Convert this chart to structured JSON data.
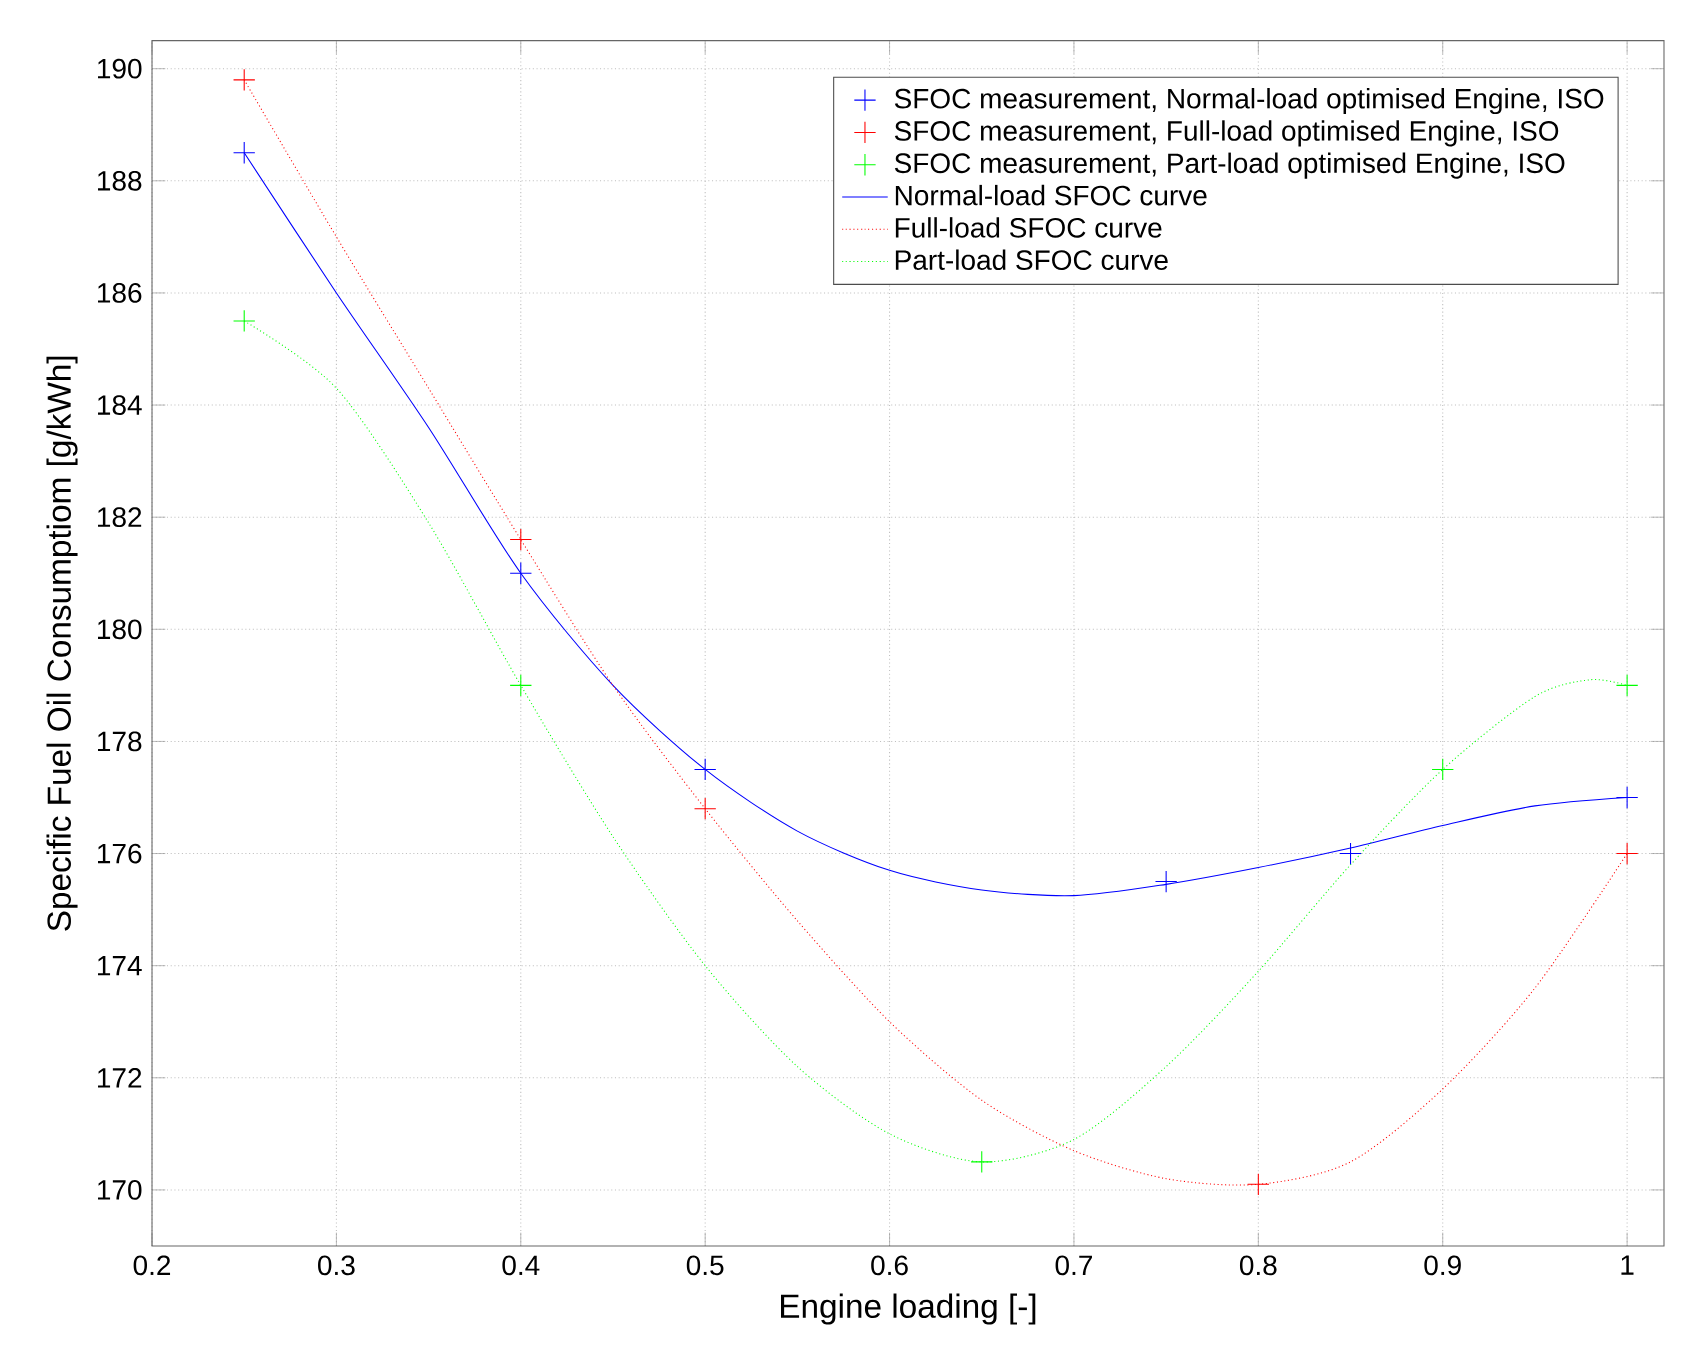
{
  "chart_data": {
    "type": "line",
    "xlabel": "Engine loading [-]",
    "ylabel": "Specific Fuel Oil Consumptiom [g/kWh]",
    "xlim": [
      0.2,
      1.02
    ],
    "ylim": [
      169,
      190.5
    ],
    "xticks": [
      0.2,
      0.3,
      0.4,
      0.5,
      0.6,
      0.7,
      0.8,
      0.9,
      1
    ],
    "yticks": [
      170,
      172,
      174,
      176,
      178,
      180,
      182,
      184,
      186,
      188,
      190
    ],
    "grid": true,
    "legend": "top right",
    "series": [
      {
        "name": "SFOC measurement, Normal-load optimised Engine, ISO",
        "type": "scatter",
        "marker": "cross",
        "color": "#0000ff",
        "x": [
          0.25,
          0.4,
          0.5,
          0.75,
          0.85,
          1
        ],
        "values": [
          188.5,
          181,
          177.5,
          175.5,
          176,
          177
        ]
      },
      {
        "name": "SFOC measurement, Full-load optimised Engine, ISO",
        "type": "scatter",
        "marker": "cross",
        "color": "#ff0000",
        "x": [
          0.25,
          0.4,
          0.5,
          0.8,
          1
        ],
        "values": [
          189.8,
          181.6,
          176.8,
          170.1,
          176
        ]
      },
      {
        "name": "SFOC measurement, Part-load optimised Engine, ISO",
        "type": "scatter",
        "marker": "cross",
        "color": "#00ff00",
        "x": [
          0.25,
          0.4,
          0.65,
          0.9,
          1
        ],
        "values": [
          185.5,
          179,
          170.5,
          177.5,
          179
        ]
      },
      {
        "name": "Normal-load SFOC curve",
        "line_style": "solid",
        "color": "#0000ff",
        "x": [
          0.25,
          0.3,
          0.35,
          0.4,
          0.45,
          0.5,
          0.55,
          0.6,
          0.65,
          0.7,
          0.75,
          0.8,
          0.85,
          0.9,
          0.95,
          1
        ],
        "values": [
          188.5,
          186.0,
          183.6,
          181.0,
          179.0,
          177.5,
          176.4,
          175.7,
          175.35,
          175.25,
          175.45,
          175.75,
          176.1,
          176.5,
          176.85,
          177.0
        ]
      },
      {
        "name": "Full-load SFOC curve",
        "line_style": "dotted",
        "color": "#ff0000",
        "x": [
          0.25,
          0.3,
          0.35,
          0.4,
          0.45,
          0.5,
          0.55,
          0.6,
          0.65,
          0.7,
          0.75,
          0.8,
          0.85,
          0.9,
          0.95,
          1
        ],
        "values": [
          189.8,
          187.0,
          184.3,
          181.6,
          179.0,
          176.8,
          174.8,
          173.0,
          171.6,
          170.7,
          170.2,
          170.1,
          170.5,
          171.8,
          173.6,
          176.0
        ]
      },
      {
        "name": "Part-load SFOC curve",
        "line_style": "dotted",
        "color": "#00ff00",
        "x": [
          0.25,
          0.3,
          0.35,
          0.4,
          0.45,
          0.5,
          0.55,
          0.6,
          0.65,
          0.7,
          0.75,
          0.8,
          0.85,
          0.9,
          0.95,
          0.98,
          1
        ],
        "values": [
          185.5,
          184.3,
          181.9,
          179.0,
          176.3,
          174.0,
          172.2,
          171.0,
          170.5,
          170.9,
          172.2,
          173.9,
          175.8,
          177.5,
          178.8,
          179.1,
          179.0
        ]
      }
    ]
  }
}
